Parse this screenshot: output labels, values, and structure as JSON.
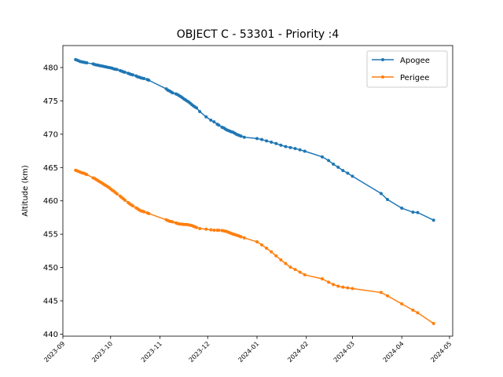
{
  "chart_data": {
    "type": "line",
    "title": "OBJECT C - 53301 - Priority :4",
    "xlabel": "",
    "ylabel": "Altitude (km)",
    "xlim": [
      "2023-09-01",
      "2024-05-03"
    ],
    "ylim": [
      439.7,
      483.3
    ],
    "xticks": [
      "2023-09",
      "2023-10",
      "2023-11",
      "2023-12",
      "2024-01",
      "2024-02",
      "2024-03",
      "2024-04",
      "2024-05"
    ],
    "yticks": [
      440,
      445,
      450,
      455,
      460,
      465,
      470,
      475,
      480
    ],
    "grid": false,
    "legend_position": "top-right",
    "series": [
      {
        "name": "Apogee",
        "color": "#1f77b4",
        "x": [
          "2023-09-09",
          "2023-09-10",
          "2023-09-11",
          "2023-09-12",
          "2023-09-13",
          "2023-09-14",
          "2023-09-15",
          "2023-09-16",
          "2023-09-20",
          "2023-09-21",
          "2023-09-22",
          "2023-09-23",
          "2023-09-24",
          "2023-09-25",
          "2023-09-26",
          "2023-09-27",
          "2023-09-28",
          "2023-09-29",
          "2023-09-30",
          "2023-10-01",
          "2023-10-02",
          "2023-10-03",
          "2023-10-04",
          "2023-10-05",
          "2023-10-07",
          "2023-10-08",
          "2023-10-09",
          "2023-10-10",
          "2023-10-12",
          "2023-10-13",
          "2023-10-14",
          "2023-10-15",
          "2023-10-17",
          "2023-10-18",
          "2023-10-19",
          "2023-10-20",
          "2023-10-21",
          "2023-10-22",
          "2023-10-24",
          "2023-10-25",
          "2023-11-05",
          "2023-11-06",
          "2023-11-07",
          "2023-11-08",
          "2023-11-09",
          "2023-11-11",
          "2023-11-12",
          "2023-11-13",
          "2023-11-14",
          "2023-11-15",
          "2023-11-16",
          "2023-11-17",
          "2023-11-18",
          "2023-11-19",
          "2023-11-20",
          "2023-11-21",
          "2023-11-22",
          "2023-11-23",
          "2023-11-24",
          "2023-11-26",
          "2023-11-30",
          "2023-12-03",
          "2023-12-05",
          "2023-12-07",
          "2023-12-08",
          "2023-12-10",
          "2023-12-11",
          "2023-12-12",
          "2023-12-13",
          "2023-12-14",
          "2023-12-15",
          "2023-12-16",
          "2023-12-17",
          "2023-12-18",
          "2023-12-19",
          "2023-12-20",
          "2023-12-21",
          "2023-12-22",
          "2023-12-24",
          "2024-01-01",
          "2024-01-04",
          "2024-01-07",
          "2024-01-10",
          "2024-01-13",
          "2024-01-16",
          "2024-01-19",
          "2024-01-22",
          "2024-01-25",
          "2024-01-28",
          "2024-01-31",
          "2024-02-11",
          "2024-02-15",
          "2024-02-18",
          "2024-02-21",
          "2024-02-24",
          "2024-02-27",
          "2024-03-01",
          "2024-03-19",
          "2024-03-23",
          "2024-04-01",
          "2024-04-08",
          "2024-04-11",
          "2024-04-21"
        ],
        "values": [
          481.2,
          481.1,
          481.0,
          480.9,
          480.85,
          480.8,
          480.75,
          480.7,
          480.55,
          480.45,
          480.4,
          480.35,
          480.3,
          480.25,
          480.2,
          480.15,
          480.1,
          480.05,
          480.0,
          479.95,
          479.9,
          479.8,
          479.75,
          479.7,
          479.55,
          479.45,
          479.35,
          479.3,
          479.15,
          479.05,
          478.95,
          478.9,
          478.75,
          478.6,
          478.55,
          478.45,
          478.4,
          478.35,
          478.2,
          478.1,
          476.8,
          476.6,
          476.5,
          476.35,
          476.2,
          476.05,
          475.95,
          475.8,
          475.65,
          475.5,
          475.3,
          475.15,
          475.0,
          474.85,
          474.65,
          474.45,
          474.25,
          474.1,
          473.95,
          473.4,
          472.6,
          472.1,
          471.85,
          471.5,
          471.35,
          471.05,
          470.95,
          470.8,
          470.65,
          470.55,
          470.45,
          470.35,
          470.3,
          470.15,
          470.0,
          469.9,
          469.8,
          469.7,
          469.55,
          469.35,
          469.2,
          469.0,
          468.8,
          468.6,
          468.35,
          468.15,
          468.0,
          467.85,
          467.65,
          467.45,
          466.6,
          466.05,
          465.5,
          465.05,
          464.55,
          464.15,
          463.7,
          461.1,
          460.2,
          458.9,
          458.3,
          458.25,
          457.1
        ]
      },
      {
        "name": "Perigee",
        "color": "#ff7f0e",
        "x": [
          "2023-09-09",
          "2023-09-10",
          "2023-09-11",
          "2023-09-12",
          "2023-09-13",
          "2023-09-14",
          "2023-09-15",
          "2023-09-16",
          "2023-09-20",
          "2023-09-21",
          "2023-09-22",
          "2023-09-23",
          "2023-09-24",
          "2023-09-25",
          "2023-09-26",
          "2023-09-27",
          "2023-09-28",
          "2023-09-29",
          "2023-09-30",
          "2023-10-01",
          "2023-10-02",
          "2023-10-03",
          "2023-10-04",
          "2023-10-05",
          "2023-10-07",
          "2023-10-08",
          "2023-10-09",
          "2023-10-10",
          "2023-10-12",
          "2023-10-13",
          "2023-10-14",
          "2023-10-15",
          "2023-10-17",
          "2023-10-18",
          "2023-10-19",
          "2023-10-20",
          "2023-10-21",
          "2023-10-22",
          "2023-10-24",
          "2023-10-25",
          "2023-11-05",
          "2023-11-06",
          "2023-11-07",
          "2023-11-08",
          "2023-11-09",
          "2023-11-11",
          "2023-11-12",
          "2023-11-13",
          "2023-11-14",
          "2023-11-15",
          "2023-11-16",
          "2023-11-17",
          "2023-11-18",
          "2023-11-19",
          "2023-11-20",
          "2023-11-21",
          "2023-11-22",
          "2023-11-23",
          "2023-11-24",
          "2023-11-26",
          "2023-11-30",
          "2023-12-03",
          "2023-12-05",
          "2023-12-07",
          "2023-12-08",
          "2023-12-10",
          "2023-12-11",
          "2023-12-12",
          "2023-12-13",
          "2023-12-14",
          "2023-12-15",
          "2023-12-16",
          "2023-12-17",
          "2023-12-18",
          "2023-12-19",
          "2023-12-20",
          "2023-12-21",
          "2023-12-22",
          "2023-12-24",
          "2024-01-01",
          "2024-01-04",
          "2024-01-07",
          "2024-01-10",
          "2024-01-13",
          "2024-01-16",
          "2024-01-19",
          "2024-01-22",
          "2024-01-25",
          "2024-01-28",
          "2024-01-31",
          "2024-02-11",
          "2024-02-15",
          "2024-02-18",
          "2024-02-21",
          "2024-02-24",
          "2024-02-27",
          "2024-03-01",
          "2024-03-19",
          "2024-03-23",
          "2024-04-01",
          "2024-04-08",
          "2024-04-11",
          "2024-04-21"
        ],
        "values": [
          464.6,
          464.5,
          464.4,
          464.3,
          464.2,
          464.15,
          464.05,
          463.95,
          463.45,
          463.35,
          463.2,
          463.05,
          462.9,
          462.75,
          462.6,
          462.45,
          462.3,
          462.15,
          462.0,
          461.8,
          461.6,
          461.45,
          461.25,
          461.05,
          460.7,
          460.5,
          460.3,
          460.1,
          459.75,
          459.55,
          459.4,
          459.25,
          458.95,
          458.8,
          458.65,
          458.5,
          458.45,
          458.35,
          458.2,
          458.1,
          457.15,
          457.05,
          456.95,
          456.9,
          456.85,
          456.7,
          456.6,
          456.55,
          456.5,
          456.5,
          456.45,
          456.45,
          456.45,
          456.4,
          456.35,
          456.3,
          456.2,
          456.1,
          456.0,
          455.85,
          455.75,
          455.65,
          455.6,
          455.6,
          455.6,
          455.55,
          455.5,
          455.45,
          455.4,
          455.3,
          455.2,
          455.1,
          455.0,
          454.95,
          454.85,
          454.8,
          454.7,
          454.6,
          454.45,
          453.85,
          453.4,
          452.9,
          452.35,
          451.75,
          451.15,
          450.6,
          450.05,
          449.7,
          449.3,
          448.9,
          448.3,
          447.8,
          447.45,
          447.2,
          447.05,
          446.95,
          446.85,
          446.25,
          445.75,
          444.55,
          443.6,
          443.2,
          441.6
        ]
      }
    ]
  }
}
